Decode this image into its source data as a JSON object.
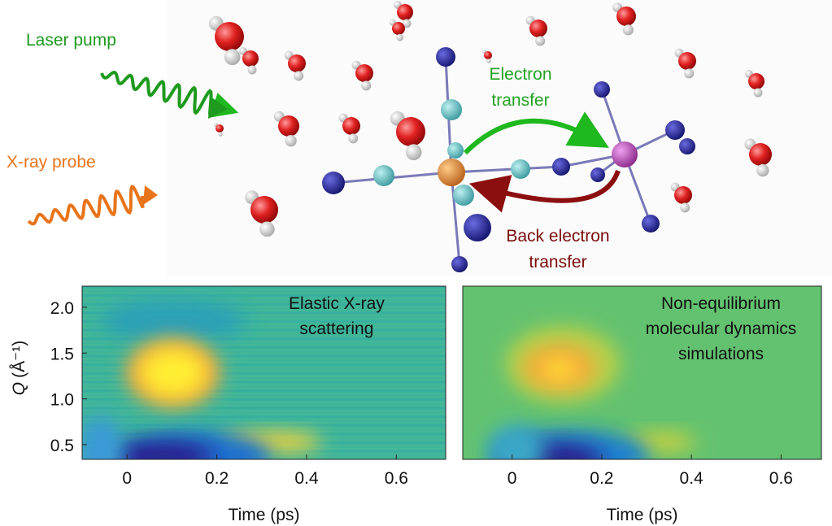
{
  "illustration": {
    "laser_label": "Laser pump",
    "xray_label": "X-ray probe",
    "electron_transfer": [
      "Electron",
      "transfer"
    ],
    "back_transfer": [
      "Back electron",
      "transfer"
    ]
  },
  "chart_data": [
    {
      "type": "heatmap",
      "annotation": [
        "Elastic X-ray",
        "scattering"
      ],
      "xlabel": "Time (ps)",
      "ylabel_symbol": "Q",
      "ylabel_unit": "(Å⁻¹)",
      "xlim": [
        -0.1,
        0.71
      ],
      "xticks": [
        0,
        0.2,
        0.4,
        0.6
      ],
      "ylim": [
        0.34,
        2.23
      ],
      "yticks": [
        {
          "value": 0.5,
          "label": "0.5"
        },
        {
          "value": 1,
          "label": "1.0"
        },
        {
          "value": 1.5,
          "label": "1.5"
        },
        {
          "value": 2,
          "label": "2.0"
        }
      ]
    },
    {
      "type": "heatmap",
      "annotation": [
        "Non-equilibrium",
        "molecular dynamics",
        "simulations"
      ],
      "xlabel": "Time (ps)",
      "xlim": [
        -0.11,
        0.69
      ],
      "xticks": [
        0,
        0.2,
        0.4,
        0.6
      ],
      "ylim": [
        0.34,
        2.23
      ]
    }
  ]
}
